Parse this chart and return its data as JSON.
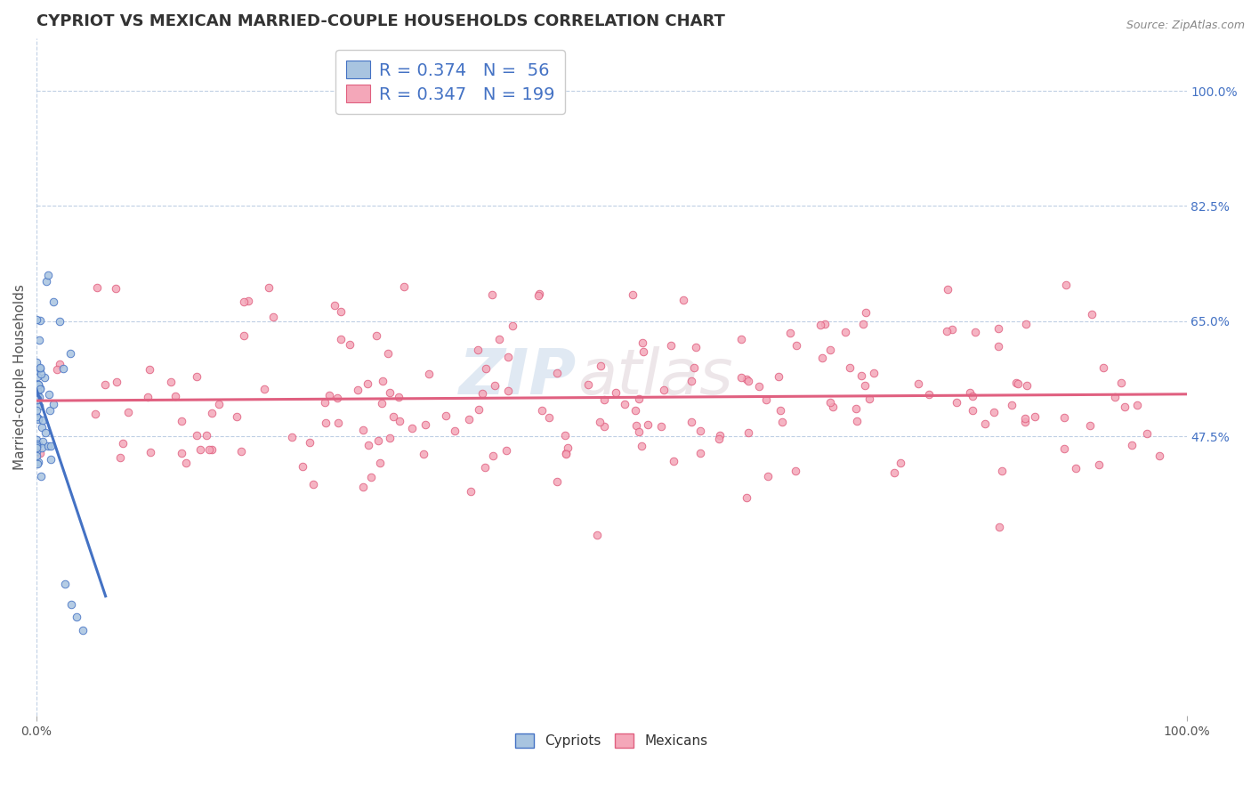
{
  "title": "CYPRIOT VS MEXICAN MARRIED-COUPLE HOUSEHOLDS CORRELATION CHART",
  "source": "Source: ZipAtlas.com",
  "ylabel": "Married-couple Households",
  "watermark_zip": "ZIP",
  "watermark_atlas": "atlas",
  "legend_cypriot_R": "0.374",
  "legend_cypriot_N": "56",
  "legend_mexican_R": "0.347",
  "legend_mexican_N": "199",
  "cypriot_color": "#a8c4e0",
  "cypriot_edge_color": "#4472c4",
  "mexican_color": "#f4a7b9",
  "mexican_edge_color": "#e06080",
  "cypriot_trend_color": "#4472c4",
  "mexican_trend_color": "#e06080",
  "grid_color": "#b0c4de",
  "background_color": "#ffffff",
  "xlim": [
    0.0,
    1.0
  ],
  "ylim_low": 0.05,
  "ylim_high": 1.08,
  "ytick_labels_right": [
    "47.5%",
    "65.0%",
    "82.5%",
    "100.0%"
  ],
  "ytick_positions_right": [
    0.475,
    0.65,
    0.825,
    1.0
  ],
  "title_fontsize": 13,
  "axis_label_fontsize": 11,
  "tick_fontsize": 10,
  "legend_fontsize": 14,
  "source_fontsize": 9
}
